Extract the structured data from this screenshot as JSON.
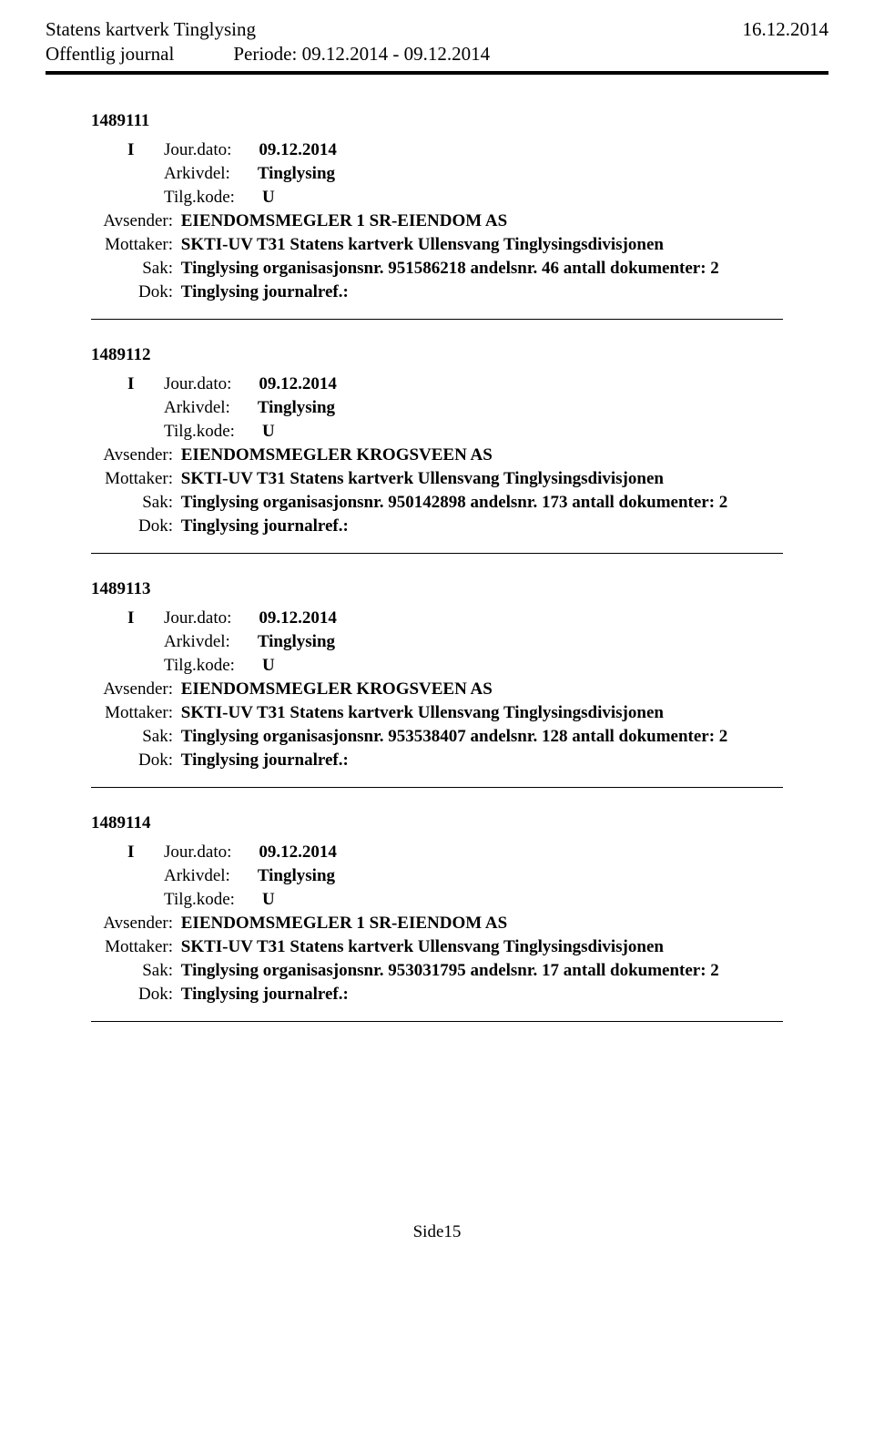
{
  "header": {
    "org": "Statens kartverk Tinglysing",
    "date": "16.12.2014",
    "subtitle": "Offentlig journal",
    "period": "Periode: 09.12.2014 - 09.12.2014"
  },
  "entries": [
    {
      "id": "1489111",
      "direction": "I",
      "jour_label": "Jour.dato:",
      "jour_date": "09.12.2014",
      "arkivdel_label": "Arkivdel:",
      "arkivdel": "Tinglysing",
      "tilgkode_label": "Tilg.kode:",
      "tilgkode": "U",
      "avsender_label": "Avsender:",
      "avsender": "EIENDOMSMEGLER 1 SR-EIENDOM AS",
      "mottaker_label": "Mottaker:",
      "mottaker": "SKTI-UV T31 Statens kartverk Ullensvang Tinglysingsdivisjonen",
      "sak_label": "Sak:",
      "sak": "Tinglysing organisasjonsnr. 951586218 andelsnr. 46 antall dokumenter: 2",
      "dok_label": "Dok:",
      "dok": "Tinglysing journalref.:"
    },
    {
      "id": "1489112",
      "direction": "I",
      "jour_label": "Jour.dato:",
      "jour_date": "09.12.2014",
      "arkivdel_label": "Arkivdel:",
      "arkivdel": "Tinglysing",
      "tilgkode_label": "Tilg.kode:",
      "tilgkode": "U",
      "avsender_label": "Avsender:",
      "avsender": "EIENDOMSMEGLER KROGSVEEN AS",
      "mottaker_label": "Mottaker:",
      "mottaker": "SKTI-UV T31 Statens kartverk Ullensvang Tinglysingsdivisjonen",
      "sak_label": "Sak:",
      "sak": "Tinglysing organisasjonsnr. 950142898 andelsnr. 173 antall dokumenter: 2",
      "dok_label": "Dok:",
      "dok": "Tinglysing journalref.:"
    },
    {
      "id": "1489113",
      "direction": "I",
      "jour_label": "Jour.dato:",
      "jour_date": "09.12.2014",
      "arkivdel_label": "Arkivdel:",
      "arkivdel": "Tinglysing",
      "tilgkode_label": "Tilg.kode:",
      "tilgkode": "U",
      "avsender_label": "Avsender:",
      "avsender": "EIENDOMSMEGLER KROGSVEEN AS",
      "mottaker_label": "Mottaker:",
      "mottaker": "SKTI-UV T31 Statens kartverk Ullensvang Tinglysingsdivisjonen",
      "sak_label": "Sak:",
      "sak": "Tinglysing organisasjonsnr. 953538407 andelsnr. 128 antall dokumenter: 2",
      "dok_label": "Dok:",
      "dok": "Tinglysing journalref.:"
    },
    {
      "id": "1489114",
      "direction": "I",
      "jour_label": "Jour.dato:",
      "jour_date": "09.12.2014",
      "arkivdel_label": "Arkivdel:",
      "arkivdel": "Tinglysing",
      "tilgkode_label": "Tilg.kode:",
      "tilgkode": "U",
      "avsender_label": "Avsender:",
      "avsender": "EIENDOMSMEGLER 1 SR-EIENDOM AS",
      "mottaker_label": "Mottaker:",
      "mottaker": "SKTI-UV T31 Statens kartverk Ullensvang Tinglysingsdivisjonen",
      "sak_label": "Sak:",
      "sak": "Tinglysing organisasjonsnr. 953031795 andelsnr. 17 antall dokumenter: 2",
      "dok_label": "Dok:",
      "dok": "Tinglysing journalref.:"
    }
  ],
  "footer": {
    "page": "Side15"
  }
}
